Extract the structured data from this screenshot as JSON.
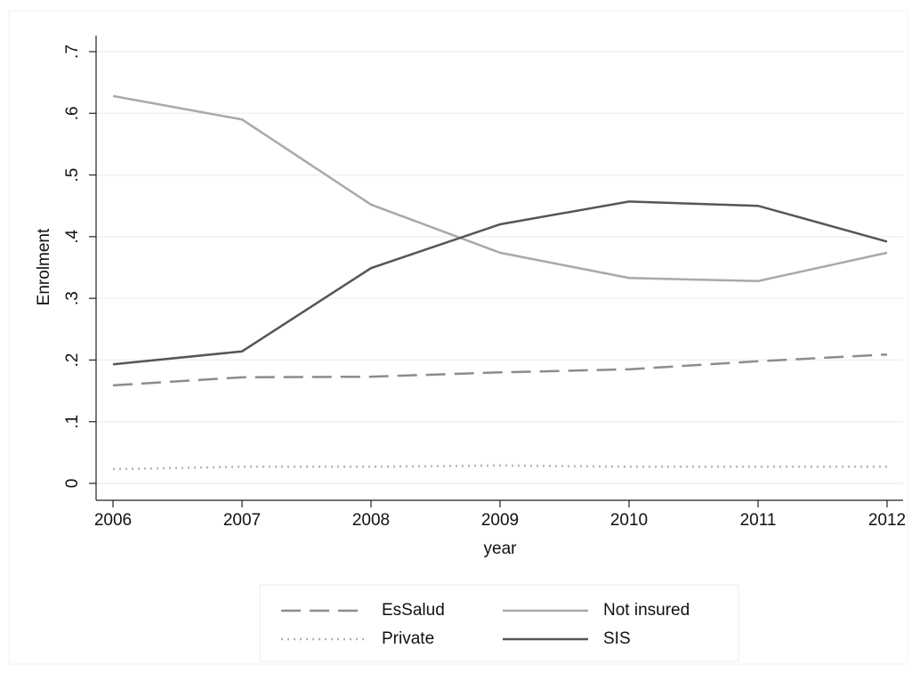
{
  "chart_data": {
    "type": "line",
    "x": [
      2006,
      2007,
      2008,
      2009,
      2010,
      2011,
      2012
    ],
    "xlabel": "year",
    "ylabel": "Enrolment",
    "xlim": [
      2006,
      2012
    ],
    "xticks": [
      2006,
      2007,
      2008,
      2009,
      2010,
      2011,
      2012
    ],
    "ylim": [
      0,
      0.7
    ],
    "yticks": [
      0,
      {
        "value": 0.1,
        "label": ".1"
      },
      {
        "value": 0.2,
        "label": ".2"
      },
      {
        "value": 0.3,
        "label": ".3"
      },
      {
        "value": 0.4,
        "label": ".4"
      },
      {
        "value": 0.5,
        "label": ".5"
      },
      {
        "value": 0.6,
        "label": ".6"
      },
      {
        "value": 0.7,
        "label": ".7"
      }
    ],
    "grid": true,
    "legend": "bottom",
    "series": [
      {
        "name": "EsSalud",
        "color": "#8c8c8c",
        "dash": "dashed",
        "values": [
          0.159,
          0.172,
          0.173,
          0.18,
          0.185,
          0.198,
          0.209
        ]
      },
      {
        "name": "Not insured",
        "color": "#a9a9a9",
        "dash": "solid",
        "values": [
          0.628,
          0.59,
          0.452,
          0.374,
          0.333,
          0.328,
          0.374
        ]
      },
      {
        "name": "Private",
        "color": "#b3b3b3",
        "dash": "dotted",
        "values": [
          0.023,
          0.027,
          0.027,
          0.029,
          0.027,
          0.027,
          0.027
        ]
      },
      {
        "name": "SIS",
        "color": "#565656",
        "dash": "solid",
        "values": [
          0.193,
          0.214,
          0.349,
          0.42,
          0.457,
          0.45,
          0.392
        ]
      }
    ]
  }
}
